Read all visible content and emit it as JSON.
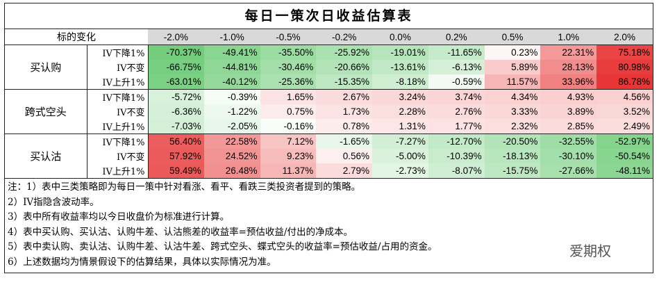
{
  "title": "每日一策次日收益估算表",
  "table": {
    "header": [
      "标的变化",
      "-2.0%",
      "-1.0%",
      "-0.5%",
      "-0.2%",
      "0.0%",
      "0.2%",
      "0.5%",
      "1.0%",
      "2.0%"
    ],
    "groups": [
      {
        "name": "买认购",
        "rows": [
          {
            "label": "IV下降1%",
            "cells": [
              "-70.37%",
              "-49.41%",
              "-35.50%",
              "-25.92%",
              "-19.01%",
              "-11.65%",
              "0.23%",
              "22.31%",
              "75.18%"
            ]
          },
          {
            "label": "IV不变",
            "cells": [
              "-66.75%",
              "-44.81%",
              "-30.46%",
              "-20.66%",
              "-13.61%",
              "-6.13%",
              "5.89%",
              "28.13%",
              "80.98%"
            ]
          },
          {
            "label": "IV上升1%",
            "cells": [
              "-63.01%",
              "-40.12%",
              "-25.36%",
              "-15.35%",
              "-8.18%",
              "-0.59%",
              "11.57%",
              "33.96%",
              "86.78%"
            ]
          }
        ]
      },
      {
        "name": "跨式空头",
        "rows": [
          {
            "label": "IV下降1%",
            "cells": [
              "-5.72%",
              "-0.39%",
              "1.65%",
              "2.67%",
              "3.24%",
              "3.74%",
              "4.34%",
              "4.93%",
              "4.56%"
            ]
          },
          {
            "label": "IV不变",
            "cells": [
              "-6.36%",
              "-1.22%",
              "0.75%",
              "1.73%",
              "2.28%",
              "2.76%",
              "3.33%",
              "3.89%",
              "3.52%"
            ]
          },
          {
            "label": "IV上升1%",
            "cells": [
              "-7.03%",
              "-2.05%",
              "-0.16%",
              "0.78%",
              "1.31%",
              "1.77%",
              "2.32%",
              "2.85%",
              "2.49%"
            ]
          }
        ]
      },
      {
        "name": "买认沽",
        "rows": [
          {
            "label": "IV下降1%",
            "cells": [
              "56.40%",
              "22.58%",
              "7.12%",
              "-1.65%",
              "-7.27%",
              "-12.70%",
              "-20.50%",
              "-32.55%",
              "-52.97%"
            ]
          },
          {
            "label": "IV不变",
            "cells": [
              "57.92%",
              "24.52%",
              "9.23%",
              "0.56%",
              "-5.00%",
              "-10.39%",
              "-18.13%",
              "-30.10%",
              "-50.54%"
            ]
          },
          {
            "label": "IV上升1%",
            "cells": [
              "59.49%",
              "26.48%",
              "11.37%",
              "2.79%",
              "-2.73%",
              "-8.07%",
              "-15.75%",
              "-27.66%",
              "-48.11%"
            ]
          }
        ]
      }
    ]
  },
  "notes": [
    "注：1）表中三类策略即为每日一策中针对看涨、看平、看跌三类投资者提到的策略。",
    "2）IV指隐含波动率。",
    "3）表中所有收益率均以今日收盘价为标准进行计算。",
    "4）表中买认购、买认沽、认购牛差、认沽熊差的收益率=预估收益/付出的净成本。",
    "5）表中卖认购、卖认沽、认购牛差、认沽牛差、跨式空头、蝶式空头的收益率=预估收益/占用的资金。",
    "6）上述数据均为情景假设下的估算结果，具体以实际情况为准。"
  ],
  "watermark": "爱期权"
}
